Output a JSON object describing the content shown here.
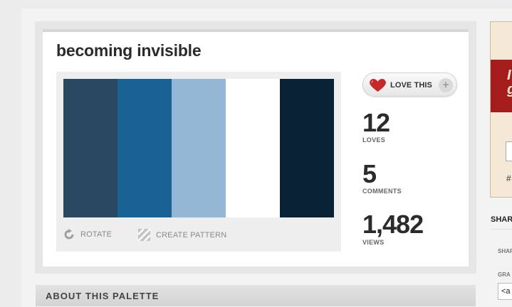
{
  "palette": {
    "title": "becoming invisible",
    "colors": [
      "#284961",
      "#1a6195",
      "#93b7d4",
      "#ffffff",
      "#0a2236"
    ]
  },
  "tools": {
    "rotate_label": "ROTATE",
    "create_pattern_label": "CREATE PATTERN"
  },
  "love_button": {
    "label": "LOVE THIS",
    "plus": "+"
  },
  "stats": {
    "loves": {
      "value": "12",
      "label": "LOVES"
    },
    "comments": {
      "value": "5",
      "label": "COMMENTS"
    },
    "views": {
      "value": "1,482",
      "label": "VIEWS"
    }
  },
  "sidebar": {
    "share_heading": "SHAR",
    "share_sub": "SHAR",
    "grab_sub": "GRA",
    "grab_value": "<a",
    "hash_text": "#",
    "red_glyph": "I\ng"
  },
  "about": {
    "heading": "ABOUT THIS PALETTE"
  },
  "accent_colors": {
    "heart": "#c62828",
    "red_band": "#a51c1c"
  }
}
